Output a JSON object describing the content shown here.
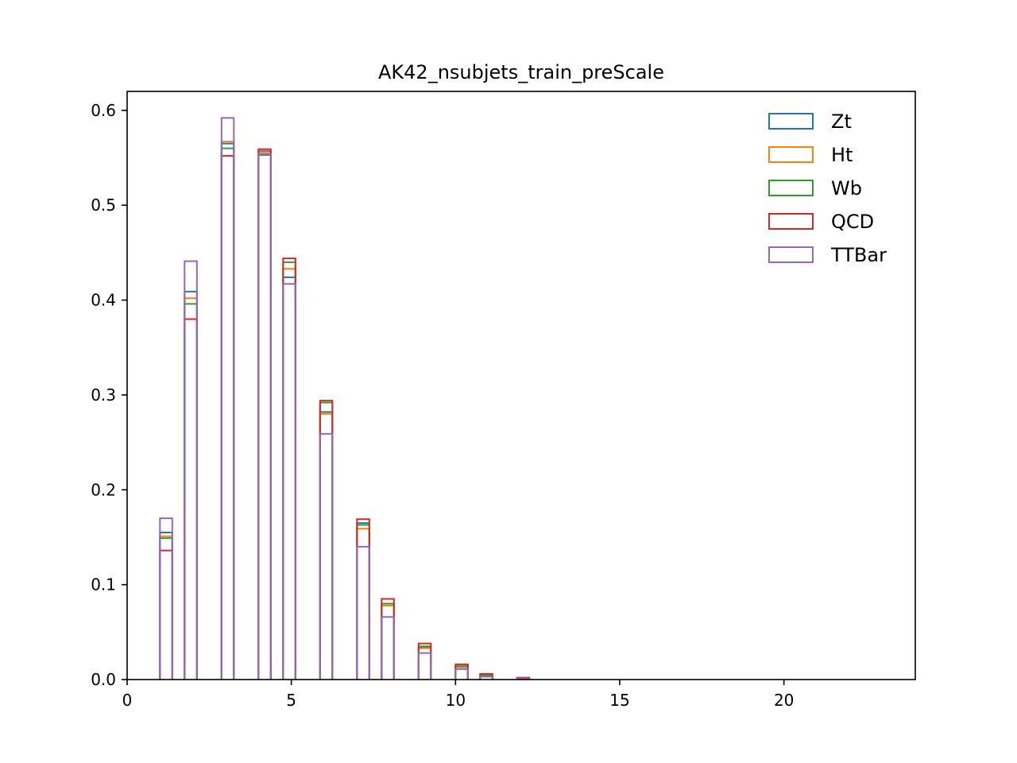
{
  "chart_data": {
    "type": "bar",
    "histtype": "step",
    "title": "AK42_nsubjets_train_preScale",
    "xlabel": "",
    "ylabel": "",
    "xlim": [
      0,
      24
    ],
    "ylim": [
      0,
      0.62
    ],
    "xticks": [
      0,
      5,
      10,
      15,
      20
    ],
    "xtick_labels": [
      "0",
      "5",
      "10",
      "15",
      "20"
    ],
    "yticks": [
      0.0,
      0.1,
      0.2,
      0.3,
      0.4,
      0.5,
      0.6
    ],
    "ytick_labels": [
      "0.0",
      "0.1",
      "0.2",
      "0.3",
      "0.4",
      "0.5",
      "0.6"
    ],
    "grid": false,
    "legend_position": "top-right",
    "bins": [
      [
        1.0,
        1.375
      ],
      [
        1.75,
        2.125
      ],
      [
        2.875,
        3.25
      ],
      [
        4.0,
        4.375
      ],
      [
        4.75,
        5.125
      ],
      [
        5.875,
        6.25
      ],
      [
        7.0,
        7.375
      ],
      [
        7.75,
        8.125
      ],
      [
        8.875,
        9.25
      ],
      [
        10.0,
        10.375
      ],
      [
        10.75,
        11.125
      ],
      [
        11.875,
        12.25
      ]
    ],
    "series": [
      {
        "name": "Zt",
        "color": "#1f77b4",
        "values": [
          0.155,
          0.409,
          0.565,
          0.557,
          0.424,
          0.282,
          0.165,
          0.08,
          0.034,
          0.014,
          0.004,
          0.0015
        ]
      },
      {
        "name": "Ht",
        "color": "#ff7f0e",
        "values": [
          0.151,
          0.402,
          0.567,
          0.556,
          0.433,
          0.28,
          0.159,
          0.078,
          0.033,
          0.013,
          0.0045,
          0.0015
        ]
      },
      {
        "name": "Wb",
        "color": "#2ca02c",
        "values": [
          0.149,
          0.396,
          0.56,
          0.553,
          0.44,
          0.292,
          0.163,
          0.08,
          0.035,
          0.014,
          0.0045,
          0.0015
        ]
      },
      {
        "name": "QCD",
        "color": "#d62728",
        "values": [
          0.136,
          0.38,
          0.552,
          0.559,
          0.444,
          0.294,
          0.169,
          0.085,
          0.038,
          0.016,
          0.006,
          0.002
        ]
      },
      {
        "name": "TTBar",
        "color": "#9467bd",
        "values": [
          0.17,
          0.441,
          0.592,
          0.554,
          0.417,
          0.259,
          0.14,
          0.066,
          0.028,
          0.011,
          0.003,
          0.001
        ]
      }
    ]
  }
}
